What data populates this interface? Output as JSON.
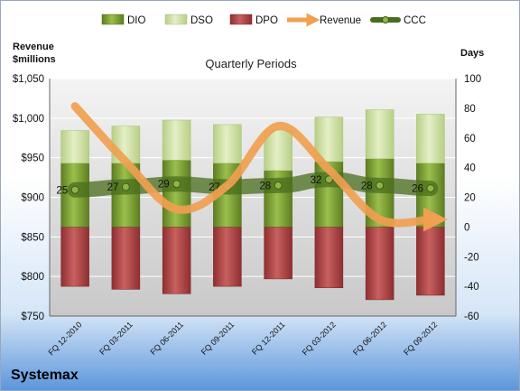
{
  "chart_data": {
    "type": "bar",
    "title": "Quarterly Periods",
    "company": "Systemax",
    "left_axis_label_line1": "Revenue",
    "left_axis_label_line2": "$millions",
    "right_axis_label": "Days",
    "categories": [
      "FQ 12-2010",
      "FQ 03-2011",
      "FQ 06-2011",
      "FQ 09-2011",
      "FQ 12-2011",
      "FQ 03-2012",
      "FQ 06-2012",
      "FQ 09-2012"
    ],
    "left_ylim": [
      750,
      1050
    ],
    "left_ticks": [
      750,
      800,
      850,
      900,
      950,
      1000,
      1050
    ],
    "left_tick_labels": [
      "$750",
      "$800",
      "$850",
      "$900",
      "$950",
      "$1,000",
      "$1,050"
    ],
    "right_ylim": [
      -60,
      100
    ],
    "right_ticks": [
      -60,
      -40,
      -20,
      0,
      20,
      40,
      60,
      80,
      100
    ],
    "right_tick_labels": [
      "-60",
      "-40",
      "-20",
      "0",
      "20",
      "40",
      "60",
      "80",
      "100"
    ],
    "series": [
      {
        "name": "DIO",
        "type": "bar",
        "color": "#7a9a34",
        "values": [
          43,
          43,
          45,
          43,
          38,
          44,
          46,
          43
        ]
      },
      {
        "name": "DSO",
        "type": "bar",
        "color": "#cfe0a6",
        "values": [
          22,
          25,
          27,
          26,
          27,
          30,
          33,
          33
        ]
      },
      {
        "name": "DPO",
        "type": "bar",
        "color": "#b0484a",
        "values": [
          -40,
          -42,
          -45,
          -40,
          -35,
          -41,
          -49,
          -46
        ]
      },
      {
        "name": "Revenue",
        "type": "line",
        "color": "#f0a050",
        "values": [
          1015,
          945,
          885,
          915,
          990,
          935,
          872,
          872
        ]
      },
      {
        "name": "CCC",
        "type": "line",
        "color": "#4a6d1c",
        "values": [
          25,
          27,
          29,
          27,
          28,
          32,
          28,
          26
        ],
        "labels": [
          "25",
          "27",
          "29",
          "27",
          "28",
          "32",
          "28",
          "26"
        ]
      }
    ],
    "legend_position": "top",
    "grid": true
  }
}
